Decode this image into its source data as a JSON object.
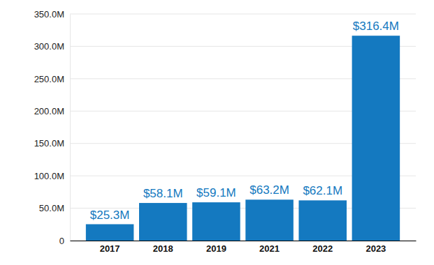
{
  "chart_data": {
    "type": "bar",
    "categories": [
      "2017",
      "2018",
      "2019",
      "2021",
      "2022",
      "2023"
    ],
    "values": [
      25300000,
      58100000,
      59100000,
      63200000,
      62100000,
      316400000
    ],
    "value_labels": [
      "$25.3M",
      "$58.1M",
      "$59.1M",
      "$63.2M",
      "$62.1M",
      "$316.4M"
    ],
    "data_labels": true,
    "color": "#1479c0",
    "ylim": [
      0,
      350000000
    ],
    "yticks": [
      0,
      {
        "value": 50000000,
        "label": "50.0M"
      },
      {
        "value": 100000000,
        "label": "100.0M"
      },
      {
        "value": 150000000,
        "label": "150.0M"
      },
      {
        "value": 200000000,
        "label": "200.0M"
      },
      {
        "value": 250000000,
        "label": "250.0M"
      },
      {
        "value": 300000000,
        "label": "300.0M"
      },
      {
        "value": 350000000,
        "label": "350.0M"
      }
    ],
    "grid": true
  }
}
